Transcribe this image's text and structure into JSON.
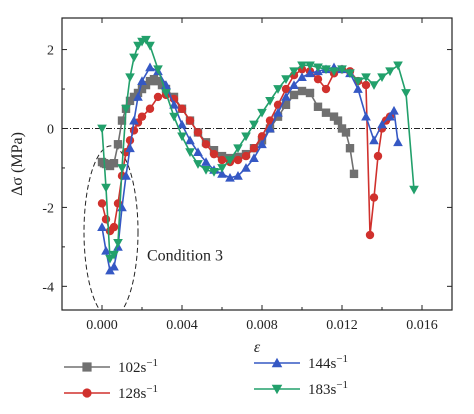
{
  "chart_data": {
    "type": "line",
    "xlabel": "ε",
    "ylabel": "Δσ (MPa)",
    "xlim": [
      -0.002,
      0.0175
    ],
    "ylim": [
      -4.6,
      2.8
    ],
    "x_ticks": [
      {
        "value": 0.0,
        "label": "0.000"
      },
      {
        "value": 0.004,
        "label": "0.004"
      },
      {
        "value": 0.008,
        "label": "0.008"
      },
      {
        "value": 0.012,
        "label": "0.012"
      },
      {
        "value": 0.016,
        "label": "0.016"
      }
    ],
    "y_ticks": [
      {
        "value": 2,
        "label": "2"
      },
      {
        "value": 0,
        "label": "0"
      },
      {
        "value": -2,
        "label": "-2"
      },
      {
        "value": -4,
        "label": "-4"
      }
    ],
    "reference_line": 0,
    "annotation": {
      "text": "Condition 3",
      "x": 0.00225,
      "y": -3.35
    },
    "ellipse": {
      "cx": 0.00045,
      "cy": -2.62,
      "rx": 0.00135,
      "ry": 2.18
    },
    "series": [
      {
        "name": "102s⁻¹",
        "name_base": "102s",
        "name_sup": "−1",
        "color": "#707070",
        "marker": "square",
        "x": [
          0.0,
          0.0001,
          0.0002,
          0.0004,
          0.0006,
          0.0008,
          0.001,
          0.0012,
          0.0014,
          0.0016,
          0.0018,
          0.002,
          0.0022,
          0.0024,
          0.0026,
          0.0028,
          0.003,
          0.0032,
          0.0036,
          0.004,
          0.0044,
          0.0048,
          0.0052,
          0.0056,
          0.006,
          0.0064,
          0.0068,
          0.0072,
          0.0076,
          0.008,
          0.0084,
          0.0088,
          0.0092,
          0.0096,
          0.01,
          0.0104,
          0.0108,
          0.0112,
          0.0116,
          0.0118,
          0.012,
          0.0122,
          0.0124,
          0.0126
        ],
        "y": [
          -0.85,
          -0.88,
          -0.9,
          -0.95,
          -0.88,
          -0.4,
          0.2,
          0.5,
          0.7,
          0.8,
          0.9,
          1.0,
          1.1,
          1.2,
          1.25,
          1.2,
          1.1,
          1.0,
          0.8,
          0.5,
          0.2,
          -0.1,
          -0.35,
          -0.55,
          -0.7,
          -0.75,
          -0.72,
          -0.65,
          -0.5,
          -0.3,
          0.0,
          0.3,
          0.6,
          0.85,
          0.95,
          0.9,
          0.55,
          0.4,
          0.3,
          0.2,
          0.0,
          -0.1,
          -0.5,
          -1.15
        ]
      },
      {
        "name": "128s⁻¹",
        "name_base": "128s",
        "name_sup": "−1",
        "color": "#d0312d",
        "marker": "circle",
        "x": [
          0.0,
          0.0002,
          0.0004,
          0.0006,
          0.0008,
          0.001,
          0.0012,
          0.0014,
          0.0016,
          0.0018,
          0.002,
          0.0024,
          0.0028,
          0.0032,
          0.0036,
          0.004,
          0.0044,
          0.0048,
          0.0052,
          0.0056,
          0.006,
          0.0064,
          0.0068,
          0.0072,
          0.0076,
          0.008,
          0.0084,
          0.0088,
          0.0092,
          0.0096,
          0.01,
          0.0104,
          0.0108,
          0.0112,
          0.0116,
          0.012,
          0.0124,
          0.0128,
          0.0132,
          0.0134,
          0.0136,
          0.0138,
          0.014,
          0.0142,
          0.0144
        ],
        "y": [
          -1.9,
          -2.3,
          -2.6,
          -2.5,
          -1.9,
          -1.2,
          -0.6,
          -0.3,
          -0.05,
          0.15,
          0.3,
          0.5,
          0.8,
          0.85,
          0.75,
          0.5,
          0.2,
          -0.1,
          -0.4,
          -0.65,
          -0.8,
          -0.85,
          -0.8,
          -0.7,
          -0.5,
          -0.2,
          0.2,
          0.6,
          1.0,
          1.35,
          1.5,
          1.45,
          1.25,
          1.0,
          1.4,
          1.5,
          1.45,
          1.2,
          1.1,
          -2.7,
          -1.75,
          -0.7,
          0.0,
          0.2,
          0.3
        ]
      },
      {
        "name": "144s⁻¹",
        "name_base": "144s",
        "name_sup": "−1",
        "color": "#3558c4",
        "marker": "triangle-up",
        "x": [
          0.0,
          0.0002,
          0.0004,
          0.0006,
          0.0008,
          0.001,
          0.0012,
          0.0014,
          0.0016,
          0.0018,
          0.002,
          0.0024,
          0.0028,
          0.0032,
          0.0036,
          0.004,
          0.0044,
          0.0048,
          0.0052,
          0.0056,
          0.006,
          0.0064,
          0.0068,
          0.0072,
          0.0076,
          0.008,
          0.0084,
          0.0088,
          0.0092,
          0.0096,
          0.01,
          0.0104,
          0.0108,
          0.0112,
          0.0116,
          0.012,
          0.0124,
          0.0128,
          0.0132,
          0.0136,
          0.014,
          0.0144,
          0.0146,
          0.0148
        ],
        "y": [
          -2.5,
          -3.1,
          -3.6,
          -3.5,
          -3.0,
          -2.0,
          -1.2,
          -0.5,
          0.2,
          0.8,
          1.2,
          1.55,
          1.45,
          1.1,
          0.6,
          0.1,
          -0.3,
          -0.6,
          -0.85,
          -1.05,
          -1.15,
          -1.25,
          -1.2,
          -1.0,
          -0.75,
          -0.4,
          0.0,
          0.4,
          0.8,
          1.1,
          1.3,
          1.4,
          1.45,
          1.5,
          1.55,
          1.5,
          1.4,
          1.0,
          0.3,
          -0.3,
          0.1,
          0.3,
          0.45,
          -0.35
        ]
      },
      {
        "name": "183s⁻¹",
        "name_base": "183s",
        "name_sup": "−1",
        "color": "#22a06b",
        "marker": "triangle-down",
        "x": [
          0.0,
          0.0002,
          0.0004,
          0.0006,
          0.0008,
          0.001,
          0.0012,
          0.0014,
          0.0016,
          0.0018,
          0.002,
          0.0022,
          0.0024,
          0.0028,
          0.0032,
          0.0036,
          0.004,
          0.0044,
          0.0048,
          0.0052,
          0.0056,
          0.006,
          0.0064,
          0.0068,
          0.0072,
          0.0076,
          0.008,
          0.0084,
          0.0088,
          0.0092,
          0.0096,
          0.01,
          0.0104,
          0.0108,
          0.0112,
          0.0116,
          0.012,
          0.0124,
          0.0128,
          0.0132,
          0.0136,
          0.014,
          0.0144,
          0.0148,
          0.0152,
          0.0156
        ],
        "y": [
          0.0,
          -1.5,
          -3.3,
          -3.2,
          -2.9,
          -1.0,
          0.5,
          1.3,
          1.8,
          2.1,
          2.2,
          2.25,
          2.1,
          1.5,
          0.9,
          0.3,
          -0.2,
          -0.6,
          -0.9,
          -1.05,
          -1.1,
          -1.0,
          -0.8,
          -0.5,
          -0.2,
          0.1,
          0.4,
          0.7,
          1.0,
          1.25,
          1.45,
          1.6,
          1.6,
          1.55,
          1.5,
          1.45,
          1.5,
          1.4,
          1.2,
          1.3,
          1.1,
          1.3,
          1.45,
          1.6,
          0.9,
          -1.55
        ]
      }
    ]
  }
}
